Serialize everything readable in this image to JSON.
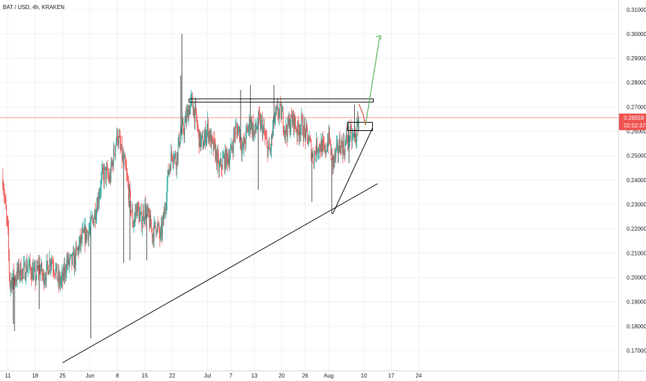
{
  "title": "BAT / USD, 4h, KRAKEN",
  "colors": {
    "up": "#26a69a",
    "down": "#ef5350",
    "price_line": "#ef5350",
    "drawing": "#000000",
    "projection": "#4caf50",
    "grid": "#eef0f3",
    "axis_border": "#d1d4dc"
  },
  "price_badge": {
    "price": "0.26559",
    "countdown": "02:52:37"
  },
  "chart_data": {
    "type": "candlestick",
    "symbol": "BAT / USD",
    "interval": "4h",
    "exchange": "KRAKEN",
    "ylim": [
      0.165,
      0.3135
    ],
    "y_ticks": [
      0.17,
      0.18,
      0.19,
      0.2,
      0.21,
      0.22,
      0.23,
      0.24,
      0.25,
      0.26,
      0.27,
      0.28,
      0.29,
      0.3,
      0.31
    ],
    "y_tick_labels": [
      "0.17000",
      "0.18000",
      "0.19000",
      "0.20000",
      "0.21000",
      "0.22000",
      "0.23000",
      "0.24000",
      "0.25000",
      "0.26000",
      "0.27000",
      "0.28000",
      "0.29000",
      "0.30000",
      "0.31000"
    ],
    "x_ticks": [
      {
        "label": "11",
        "day": 0
      },
      {
        "label": "18",
        "day": 7
      },
      {
        "label": "25",
        "day": 14
      },
      {
        "label": "Jun",
        "day": 21
      },
      {
        "label": "8",
        "day": 28
      },
      {
        "label": "15",
        "day": 35
      },
      {
        "label": "22",
        "day": 42
      },
      {
        "label": "Jul",
        "day": 51
      },
      {
        "label": "7",
        "day": 57
      },
      {
        "label": "13",
        "day": 63
      },
      {
        "label": "20",
        "day": 70
      },
      {
        "label": "26",
        "day": 76
      },
      {
        "label": "Aug",
        "day": 82
      },
      {
        "label": "10",
        "day": 91
      },
      {
        "label": "17",
        "day": 98
      },
      {
        "label": "24",
        "day": 105
      }
    ],
    "last_price": 0.26559,
    "price_path": [
      [
        -1.3,
        0.241
      ],
      [
        0,
        0.218
      ],
      [
        0.5,
        0.197
      ],
      [
        1.2,
        0.2
      ],
      [
        2,
        0.2
      ],
      [
        3,
        0.203
      ],
      [
        4,
        0.202
      ],
      [
        5,
        0.205
      ],
      [
        6,
        0.203
      ],
      [
        7,
        0.2
      ],
      [
        8,
        0.205
      ],
      [
        9,
        0.2
      ],
      [
        10,
        0.203
      ],
      [
        11,
        0.208
      ],
      [
        12,
        0.204
      ],
      [
        13,
        0.198
      ],
      [
        14,
        0.199
      ],
      [
        15,
        0.206
      ],
      [
        16,
        0.206
      ],
      [
        17,
        0.207
      ],
      [
        18,
        0.212
      ],
      [
        19,
        0.216
      ],
      [
        20,
        0.218
      ],
      [
        21,
        0.22
      ],
      [
        22,
        0.225
      ],
      [
        23,
        0.232
      ],
      [
        24,
        0.241
      ],
      [
        25,
        0.243
      ],
      [
        26,
        0.24
      ],
      [
        27,
        0.25
      ],
      [
        28,
        0.259
      ],
      [
        29,
        0.251
      ],
      [
        30,
        0.245
      ],
      [
        31,
        0.234
      ],
      [
        32,
        0.222
      ],
      [
        33,
        0.229
      ],
      [
        34,
        0.223
      ],
      [
        35,
        0.228
      ],
      [
        36,
        0.224
      ],
      [
        37,
        0.218
      ],
      [
        38,
        0.222
      ],
      [
        39,
        0.216
      ],
      [
        40,
        0.226
      ],
      [
        41,
        0.243
      ],
      [
        42,
        0.252
      ],
      [
        43,
        0.248
      ],
      [
        44,
        0.258
      ],
      [
        45,
        0.261
      ],
      [
        46,
        0.268
      ],
      [
        47,
        0.272
      ],
      [
        48,
        0.266
      ],
      [
        49,
        0.256
      ],
      [
        50,
        0.255
      ],
      [
        51,
        0.262
      ],
      [
        52,
        0.255
      ],
      [
        53,
        0.252
      ],
      [
        54,
        0.244
      ],
      [
        55,
        0.248
      ],
      [
        56,
        0.249
      ],
      [
        57,
        0.251
      ],
      [
        58,
        0.26
      ],
      [
        59,
        0.261
      ],
      [
        60,
        0.252
      ],
      [
        61,
        0.259
      ],
      [
        62,
        0.264
      ],
      [
        63,
        0.259
      ],
      [
        64,
        0.264
      ],
      [
        65,
        0.262
      ],
      [
        66,
        0.255
      ],
      [
        67,
        0.251
      ],
      [
        68,
        0.264
      ],
      [
        69,
        0.268
      ],
      [
        70,
        0.267
      ],
      [
        71,
        0.26
      ],
      [
        72,
        0.263
      ],
      [
        73,
        0.265
      ],
      [
        74,
        0.26
      ],
      [
        75,
        0.263
      ],
      [
        76,
        0.259
      ],
      [
        77,
        0.256
      ],
      [
        78,
        0.249
      ],
      [
        79,
        0.254
      ],
      [
        80,
        0.254
      ],
      [
        81,
        0.251
      ],
      [
        82,
        0.258
      ],
      [
        83,
        0.247
      ],
      [
        84,
        0.251
      ],
      [
        85,
        0.255
      ],
      [
        86,
        0.253
      ],
      [
        87,
        0.259
      ],
      [
        88,
        0.257
      ],
      [
        89,
        0.258
      ],
      [
        89.7,
        0.2655
      ]
    ],
    "spikes": [
      {
        "day": 1.4,
        "low": 0.181
      },
      {
        "day": 1.7,
        "low": 0.178
      },
      {
        "day": 8,
        "low": 0.187
      },
      {
        "day": 21.2,
        "low": 0.175
      },
      {
        "day": 29.6,
        "low": 0.206
      },
      {
        "day": 31.2,
        "low": 0.207
      },
      {
        "day": 35.5,
        "low": 0.207
      },
      {
        "day": 44.5,
        "high": 0.3
      },
      {
        "day": 44.2,
        "high": 0.283
      },
      {
        "day": 59.5,
        "high": 0.277
      },
      {
        "day": 62,
        "high": 0.279
      },
      {
        "day": 64,
        "low": 0.236
      },
      {
        "day": 68,
        "high": 0.279
      },
      {
        "day": 77.7,
        "low": 0.231
      },
      {
        "day": 82.8,
        "low": 0.226
      },
      {
        "day": 88.6,
        "high": 0.271
      },
      {
        "day": 87.2,
        "low": 0.247
      }
    ],
    "drawings": {
      "long_trendline": {
        "from": {
          "day": 14,
          "price": 0.165
        },
        "to": {
          "day": 94.5,
          "price": 0.2385
        }
      },
      "short_trendline": {
        "from": {
          "day": 83,
          "price": 0.226
        },
        "to": {
          "day": 93.2,
          "price": 0.2613
        }
      },
      "resistance_zone": {
        "from_day": 46.3,
        "to_day": 93.4,
        "top": 0.2733,
        "bottom": 0.272
      },
      "support_zone": {
        "from_day": 86.8,
        "to_day": 93.2,
        "top": 0.2637,
        "bottom": 0.2603
      },
      "projection": [
        {
          "day": 89.7,
          "price": 0.2712
        },
        {
          "day": 90.8,
          "price": 0.267
        },
        {
          "day": 91.4,
          "price": 0.2625
        },
        {
          "day": 95,
          "price": 0.2985
        }
      ],
      "projection_arrow_tip": {
        "day": 95.2,
        "price": 0.2993
      }
    }
  }
}
